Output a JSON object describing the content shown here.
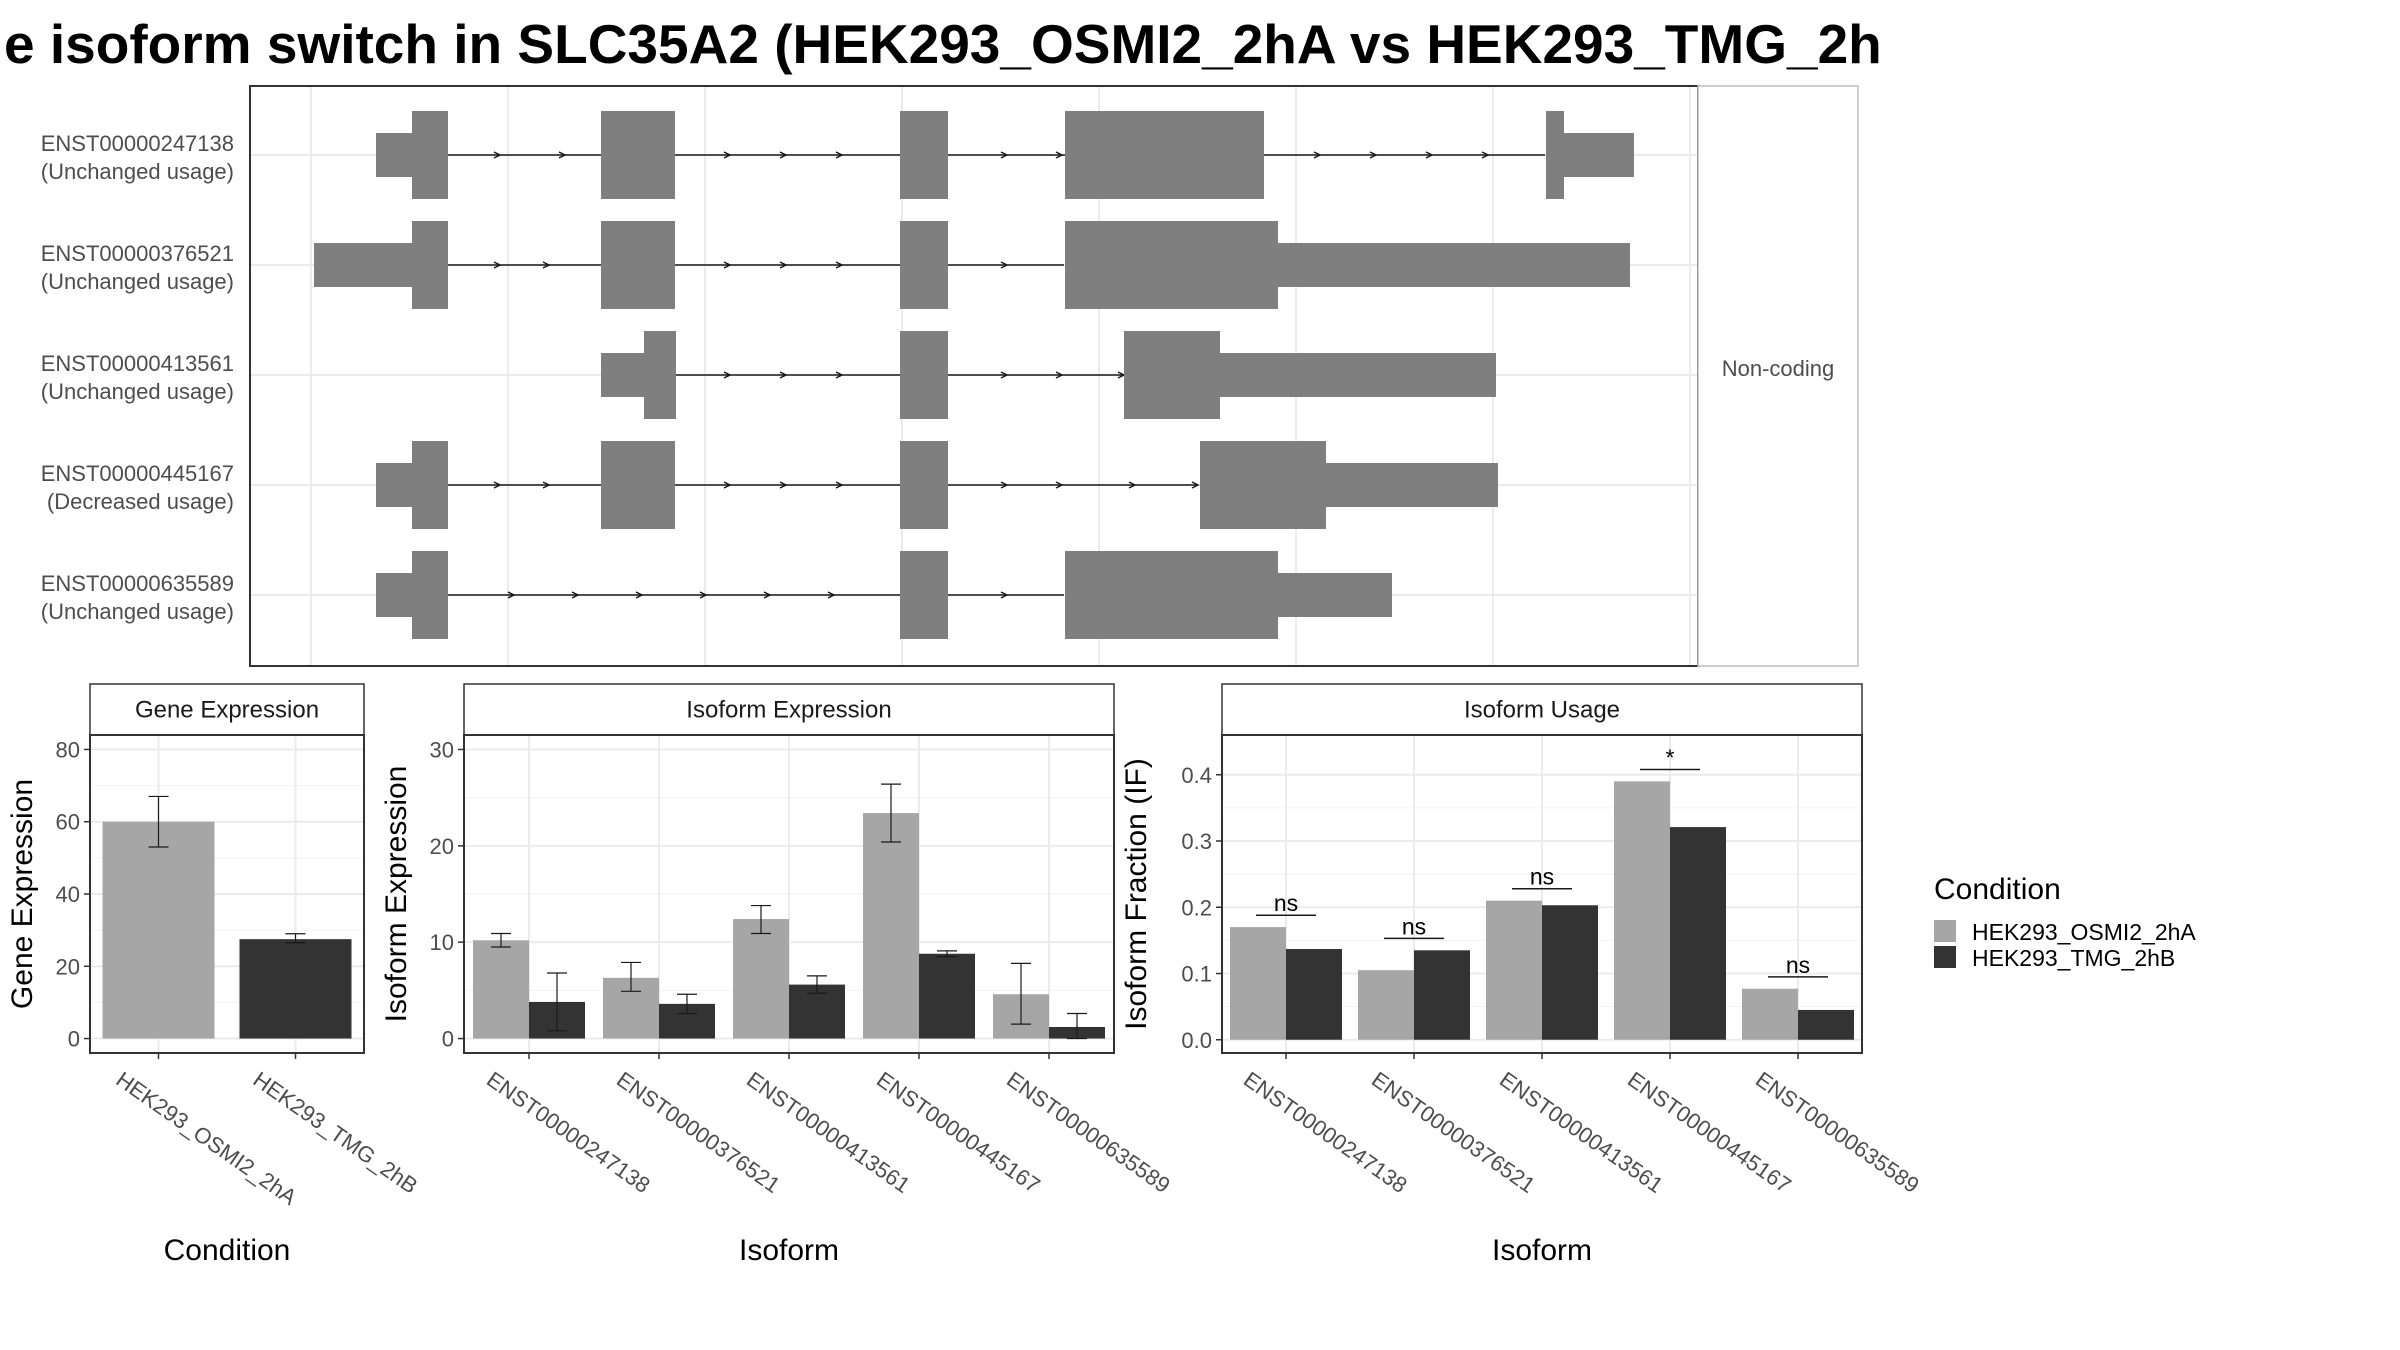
{
  "title": "e isoform switch in SLC35A2 (HEK293_OSMI2_2hA vs HEK293_TMG_2h",
  "colors": {
    "condition_a": "#a6a6a6",
    "condition_b": "#333333",
    "exon": "#7f7f7f",
    "grid": "#ebebeb",
    "border": "#333333"
  },
  "chart_data": [
    {
      "panel": "transcript-structure",
      "type": "diagram",
      "strip_label": "Non-coding",
      "transcripts": [
        {
          "id": "ENST00000247138",
          "usage": "(Unchanged usage)"
        },
        {
          "id": "ENST00000376521",
          "usage": "(Unchanged usage)"
        },
        {
          "id": "ENST00000413561",
          "usage": "(Unchanged usage)"
        },
        {
          "id": "ENST00000445167",
          "usage": "(Decreased usage)"
        },
        {
          "id": "ENST00000635589",
          "usage": "(Unchanged usage)"
        }
      ]
    },
    {
      "panel": "gene-expression",
      "type": "bar",
      "title": "Gene Expression",
      "xlabel": "Condition",
      "ylabel": "Gene Expression",
      "categories": [
        "HEK293_OSMI2_2hA",
        "HEK293_TMG_2hB"
      ],
      "values": [
        60,
        27.5
      ],
      "errors": [
        [
          53,
          67
        ],
        [
          26.5,
          29
        ]
      ],
      "ylim": [
        -4,
        84
      ],
      "yticks": [
        0,
        20,
        40,
        60,
        80
      ],
      "grid": true
    },
    {
      "panel": "isoform-expression",
      "type": "bar",
      "title": "Isoform Expression",
      "xlabel": "Isoform",
      "ylabel": "Isoform Expression",
      "categories": [
        "ENST00000247138",
        "ENST00000376521",
        "ENST00000413561",
        "ENST00000445167",
        "ENST00000635589"
      ],
      "series": [
        {
          "name": "HEK293_OSMI2_2hA",
          "values": [
            10.2,
            6.3,
            12.4,
            23.4,
            4.6
          ],
          "errors": [
            [
              9.5,
              10.9
            ],
            [
              4.9,
              7.9
            ],
            [
              10.9,
              13.8
            ],
            [
              20.4,
              26.4
            ],
            [
              1.5,
              7.8
            ]
          ]
        },
        {
          "name": "HEK293_TMG_2hB",
          "values": [
            3.8,
            3.6,
            5.6,
            8.8,
            1.2
          ],
          "errors": [
            [
              0.8,
              6.8
            ],
            [
              2.6,
              4.6
            ],
            [
              4.7,
              6.5
            ],
            [
              8.5,
              9.1
            ],
            [
              0,
              2.6
            ]
          ]
        }
      ],
      "ylim": [
        -1.5,
        31.5
      ],
      "yticks": [
        0,
        10,
        20,
        30
      ],
      "grid": true
    },
    {
      "panel": "isoform-usage",
      "type": "bar",
      "title": "Isoform Usage",
      "xlabel": "Isoform",
      "ylabel": "Isoform Fraction (IF)",
      "categories": [
        "ENST00000247138",
        "ENST00000376521",
        "ENST00000413561",
        "ENST00000445167",
        "ENST00000635589"
      ],
      "series": [
        {
          "name": "HEK293_OSMI2_2hA",
          "values": [
            0.17,
            0.105,
            0.21,
            0.39,
            0.077
          ]
        },
        {
          "name": "HEK293_TMG_2hB",
          "values": [
            0.137,
            0.135,
            0.203,
            0.321,
            0.045
          ]
        }
      ],
      "significance": [
        "ns",
        "ns",
        "ns",
        "*",
        "ns"
      ],
      "ylim": [
        -0.02,
        0.46
      ],
      "yticks": [
        0.0,
        0.1,
        0.2,
        0.3,
        0.4
      ],
      "grid": true
    }
  ],
  "legend": {
    "title": "Condition",
    "items": [
      "HEK293_OSMI2_2hA",
      "HEK293_TMG_2hB"
    ]
  }
}
